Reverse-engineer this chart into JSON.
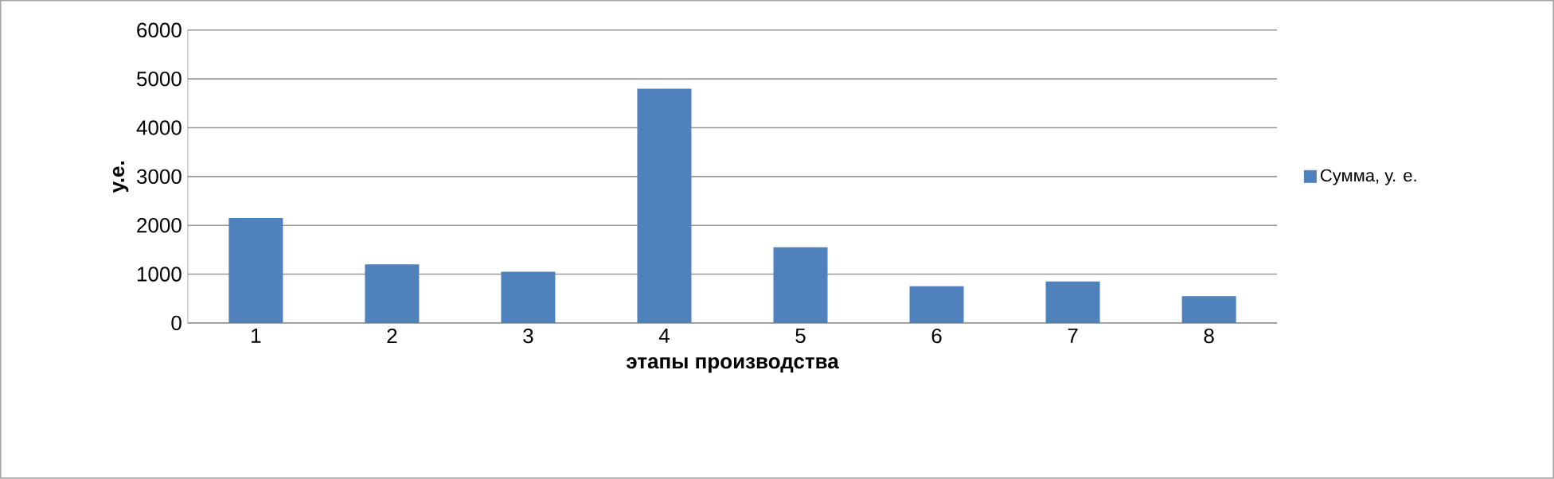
{
  "chart_data": {
    "type": "bar",
    "xlabel": "этапы производства",
    "ylabel": "у.е.",
    "categories": [
      "1",
      "2",
      "3",
      "4",
      "5",
      "6",
      "7",
      "8"
    ],
    "series": [
      {
        "name": "Сумма, у. е.",
        "color": "#4f81bd",
        "values": [
          2150,
          1200,
          1050,
          4800,
          1550,
          750,
          850,
          550
        ]
      }
    ],
    "ylim": [
      0,
      6000
    ],
    "yticks": [
      0,
      1000,
      2000,
      3000,
      4000,
      5000,
      6000
    ],
    "grid": "y",
    "legend": "right"
  }
}
